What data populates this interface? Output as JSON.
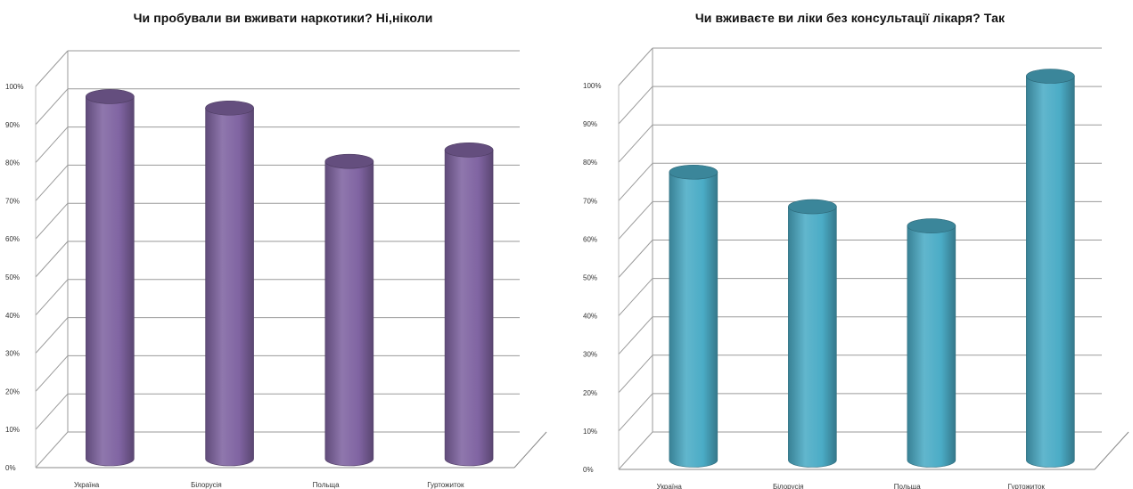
{
  "chart_data": [
    {
      "type": "bar",
      "title": "Чи пробували ви вживати наркотики? Ні,ніколи",
      "categories": [
        "Україна",
        "Білорусія",
        "Польща",
        "Гуртожиток"
      ],
      "values": [
        95,
        92,
        78,
        81
      ],
      "ylim": [
        0,
        100
      ],
      "yticks": [
        "0%",
        "10%",
        "20%",
        "30%",
        "40%",
        "50%",
        "60%",
        "70%",
        "80%",
        "90%",
        "100%"
      ],
      "grid": true,
      "legend": "none",
      "color": "#8064a2",
      "style": "3d-cylinder"
    },
    {
      "type": "bar",
      "title": "Чи вживаєте ви ліки без консультації лікаря? Так",
      "categories": [
        "Україна",
        "Білорусія",
        "Польща",
        "Гуртожиток"
      ],
      "values": [
        75,
        66,
        61,
        100
      ],
      "ylim": [
        0,
        100
      ],
      "yticks": [
        "0%",
        "10%",
        "20%",
        "30%",
        "40%",
        "50%",
        "60%",
        "70%",
        "80%",
        "90%",
        "100%"
      ],
      "grid": true,
      "legend": "none",
      "color": "#4bacc6",
      "style": "3d-cylinder"
    }
  ]
}
